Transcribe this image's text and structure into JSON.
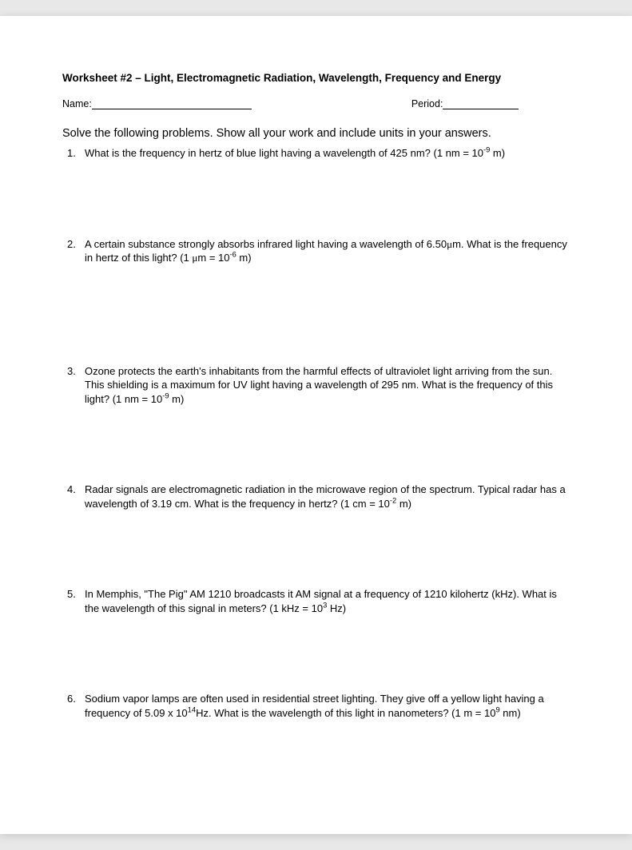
{
  "title": "Worksheet #2 – Light, Electromagnetic Radiation, Wavelength, Frequency and Energy",
  "nameLabel": "Name:",
  "periodLabel": "Period:",
  "instructions": "Solve the following problems. Show all your work and include units in your answers.",
  "problems": [
    {
      "n": "1.",
      "html": "What is the frequency in hertz of blue light having a wavelength of 425 nm? (1 nm = 10<sup>-9</sup> m)",
      "spacer": "problem-spacer"
    },
    {
      "n": "2.",
      "html": "A certain substance strongly absorbs infrared light having a wavelength of 6.50<span class='mu'>μ</span>m.  What is the frequency in hertz of this light? (1 <span class='mu'>μ</span>m = 10<sup>-6</sup> m)",
      "spacer": "problem-spacer-lg"
    },
    {
      "n": "3.",
      "html": "Ozone protects the earth's inhabitants from the harmful effects of ultraviolet light arriving from the sun.  This shielding is a maximum for UV light having a wavelength of 295 nm.  What is the frequency of this light? (1 nm = 10<sup>-9</sup> m)",
      "spacer": "problem-spacer"
    },
    {
      "n": "4.",
      "html": "Radar signals are electromagnetic radiation in the microwave region of the spectrum.  Typical radar has a wavelength of 3.19 cm.  What is the frequency in hertz? (1 cm = 10<sup>-2</sup> m)",
      "spacer": "problem-spacer"
    },
    {
      "n": "5.",
      "html": "In Memphis, \"The Pig\" AM 1210 broadcasts it AM signal at a frequency of 1210 kilohertz (kHz).  What is the wavelength of this signal in meters? (1 kHz = 10<sup>3</sup> Hz)",
      "spacer": "problem-spacer"
    },
    {
      "n": "6.",
      "html": "Sodium vapor lamps are often used in residential street lighting.  They give off a yellow light having a frequency of 5.09 x 10<sup>14</sup>Hz.  What is the wavelength of this light in nanometers? (1 m = 10<sup>9</sup> nm)",
      "spacer": "problem-spacer"
    }
  ]
}
